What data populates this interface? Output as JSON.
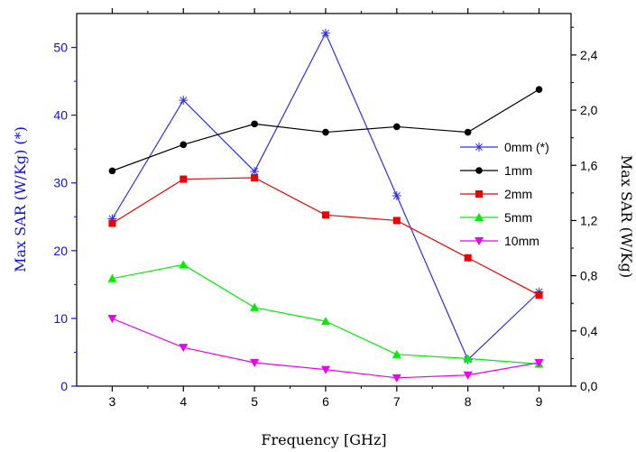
{
  "chart_data": {
    "type": "line",
    "xlabel": "Frequency [GHz]",
    "ylabel_left": "Max SAR (W/Kg) (*)",
    "ylabel_right": "Max SAR (W/Kg)",
    "x": [
      3,
      4,
      5,
      6,
      7,
      8,
      9
    ],
    "xlim": [
      2.5,
      9.45
    ],
    "x_ticks": [
      "3",
      "4",
      "5",
      "6",
      "7",
      "8",
      "9"
    ],
    "ylim_left": [
      0,
      55
    ],
    "ylim_right": [
      0,
      2.7
    ],
    "y_ticks_left": [
      "0",
      "10",
      "20",
      "30",
      "40",
      "50"
    ],
    "y_ticks_right": [
      "0,0",
      "0,4",
      "0,8",
      "1,2",
      "1,6",
      "2,0",
      "2,4"
    ],
    "grid": false,
    "legend_position": "right",
    "colors": {
      "left_axis": "#1010e0",
      "right_axis": "#000000"
    },
    "series": [
      {
        "name": "0mm (*)",
        "axis": "left",
        "color": "#3030e0",
        "marker": "asterisk",
        "values": [
          24.7,
          42.2,
          31.7,
          52.1,
          28.1,
          3.9,
          13.9
        ]
      },
      {
        "name": "1mm",
        "axis": "right",
        "color": "#000000",
        "marker": "circle",
        "values": [
          1.56,
          1.75,
          1.9,
          1.84,
          1.88,
          1.84,
          2.15
        ]
      },
      {
        "name": "2mm",
        "axis": "right",
        "color": "#ee0000",
        "marker": "square",
        "values": [
          1.18,
          1.5,
          1.51,
          1.24,
          1.2,
          0.93,
          0.66
        ]
      },
      {
        "name": "5mm",
        "axis": "right",
        "color": "#00ee00",
        "marker": "triangle-up",
        "values": [
          0.78,
          0.88,
          0.57,
          0.47,
          0.23,
          0.2,
          0.16
        ]
      },
      {
        "name": "10mm",
        "axis": "right",
        "color": "#ee00ee",
        "marker": "triangle-down",
        "values": [
          0.49,
          0.28,
          0.17,
          0.12,
          0.06,
          0.08,
          0.17
        ]
      }
    ]
  }
}
